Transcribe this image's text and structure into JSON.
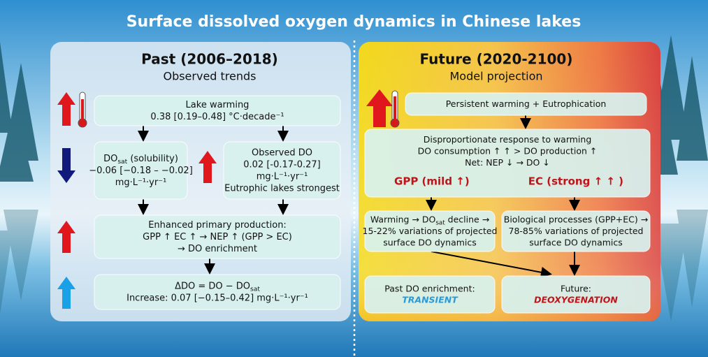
{
  "title": "Surface dissolved oxygen dynamics in Chinese lakes",
  "past": {
    "heading": "Past (2006–2018)",
    "subheading": "Observed trends",
    "boxes": [
      {
        "lines": [
          [
            "Lake warming"
          ],
          [
            "0.38 [0.19–0.48] °C·decade⁻¹"
          ]
        ]
      },
      {
        "lines": [
          [
            "DO",
            {
              "sub": "sat"
            },
            " (solubility)"
          ],
          [
            "−0.06 [−0.18 – −0.02]"
          ],
          [
            "mg·L⁻¹·yr⁻¹"
          ]
        ]
      },
      {
        "lines": [
          [
            "Observed DO"
          ],
          [
            "0.02 [-0.17-0.27]"
          ],
          [
            "mg·L⁻¹·yr⁻¹"
          ],
          [
            "Eutrophic lakes strongest"
          ]
        ]
      },
      {
        "lines": [
          [
            "Enhanced primary production:"
          ],
          [
            "GPP ↑   EC ↑  →  NEP ↑  (GPP > EC)"
          ],
          [
            "→ DO enrichment"
          ]
        ]
      },
      {
        "lines": [
          [
            "ΔDO = DO − DO",
            {
              "sub": "sat"
            }
          ],
          [
            "Increase: 0.07 [−0.15–0.42] mg·L⁻¹·yr⁻¹"
          ]
        ]
      }
    ]
  },
  "future": {
    "heading": "Future (2020-2100)",
    "subheading": "Model projection",
    "boxes": [
      {
        "lines": [
          [
            "Persistent warming + Eutrophication"
          ]
        ]
      },
      {
        "lines": [
          [
            "Disproportionate response to warming"
          ],
          [
            "DO consumption ↑ ↑  >  DO production ↑"
          ],
          [
            "Net: NEP ↓ → DO ↓"
          ]
        ],
        "highlights": [
          {
            "text": "GPP (mild ↑)",
            "color": "#c0141a"
          },
          {
            "text": "EC (strong ↑ ↑ )",
            "color": "#c0141a"
          }
        ]
      },
      {
        "lines": [
          [
            "Warming → DO",
            {
              "sub": "sat"
            },
            " decline →"
          ],
          [
            "15-22% variations of projected"
          ],
          [
            "surface DO dynamics"
          ]
        ]
      },
      {
        "lines": [
          [
            "Biological processes (GPP+EC) →"
          ],
          [
            "78-85% variations of projected"
          ],
          [
            "surface DO dynamics"
          ]
        ]
      },
      {
        "lines": [
          [
            "Past DO enrichment:"
          ]
        ],
        "emphasis": {
          "text": "TRANSIENT",
          "color": "#2a9ad8"
        }
      },
      {
        "lines": [
          [
            "Future:"
          ]
        ],
        "emphasis": {
          "text": "DEOXYGENATION",
          "color": "#c0141a"
        }
      }
    ]
  }
}
